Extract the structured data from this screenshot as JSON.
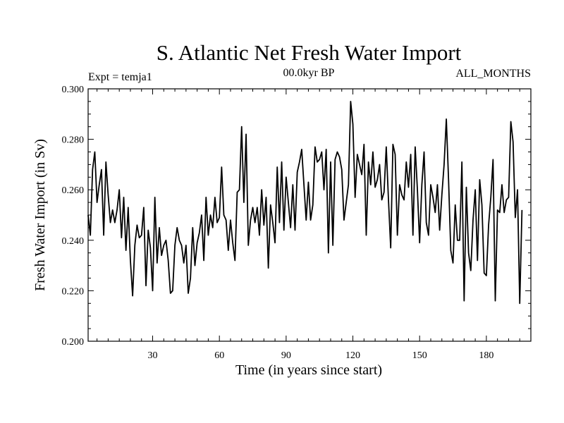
{
  "chart_data": {
    "type": "line",
    "title": "S. Atlantic Net Fresh Water Import",
    "subtitle_left": "Expt = temja1",
    "subtitle_center": "00.0kyr BP",
    "subtitle_right": "ALL_MONTHS",
    "xlabel": "Time (in years since start)",
    "ylabel": "Fresh Water Import (in Sv)",
    "xlim": [
      1,
      200
    ],
    "ylim": [
      0.2,
      0.3
    ],
    "xticks": [
      30,
      60,
      90,
      120,
      150,
      180
    ],
    "xtick_labels": [
      "30",
      "60",
      "90",
      "120",
      "150",
      "180"
    ],
    "yticks": [
      0.2,
      0.22,
      0.24,
      0.26,
      0.28,
      0.3
    ],
    "ytick_labels": [
      "0.200",
      "0.220",
      "0.240",
      "0.260",
      "0.280",
      "0.300"
    ],
    "line_color": "#000000",
    "series": [
      {
        "name": "fresh_water_import",
        "x_start": 1,
        "x_step": 1,
        "values": [
          0.25,
          0.242,
          0.268,
          0.275,
          0.255,
          0.262,
          0.268,
          0.242,
          0.271,
          0.258,
          0.247,
          0.252,
          0.247,
          0.252,
          0.26,
          0.241,
          0.257,
          0.236,
          0.253,
          0.232,
          0.218,
          0.238,
          0.246,
          0.241,
          0.242,
          0.253,
          0.222,
          0.244,
          0.237,
          0.22,
          0.257,
          0.231,
          0.245,
          0.234,
          0.238,
          0.24,
          0.232,
          0.219,
          0.22,
          0.238,
          0.245,
          0.24,
          0.238,
          0.231,
          0.238,
          0.219,
          0.225,
          0.245,
          0.23,
          0.239,
          0.243,
          0.25,
          0.232,
          0.257,
          0.242,
          0.25,
          0.245,
          0.257,
          0.247,
          0.249,
          0.269,
          0.25,
          0.248,
          0.236,
          0.248,
          0.239,
          0.232,
          0.259,
          0.26,
          0.285,
          0.255,
          0.282,
          0.238,
          0.248,
          0.253,
          0.247,
          0.253,
          0.242,
          0.26,
          0.246,
          0.257,
          0.229,
          0.254,
          0.247,
          0.239,
          0.269,
          0.247,
          0.271,
          0.244,
          0.265,
          0.255,
          0.245,
          0.262,
          0.244,
          0.267,
          0.271,
          0.276,
          0.262,
          0.248,
          0.263,
          0.248,
          0.254,
          0.277,
          0.271,
          0.272,
          0.275,
          0.26,
          0.276,
          0.235,
          0.271,
          0.238,
          0.272,
          0.275,
          0.273,
          0.268,
          0.248,
          0.255,
          0.262,
          0.295,
          0.286,
          0.257,
          0.274,
          0.27,
          0.266,
          0.278,
          0.242,
          0.271,
          0.262,
          0.275,
          0.261,
          0.264,
          0.27,
          0.256,
          0.259,
          0.277,
          0.256,
          0.237,
          0.278,
          0.274,
          0.242,
          0.262,
          0.258,
          0.256,
          0.271,
          0.261,
          0.274,
          0.242,
          0.277,
          0.26,
          0.239,
          0.262,
          0.275,
          0.247,
          0.242,
          0.262,
          0.257,
          0.251,
          0.262,
          0.244,
          0.258,
          0.27,
          0.288,
          0.264,
          0.236,
          0.231,
          0.254,
          0.24,
          0.24,
          0.271,
          0.216,
          0.261,
          0.235,
          0.228,
          0.248,
          0.26,
          0.232,
          0.264,
          0.254,
          0.227,
          0.226,
          0.246,
          0.257,
          0.272,
          0.216,
          0.252,
          0.251,
          0.262,
          0.251,
          0.256,
          0.257,
          0.287,
          0.279,
          0.249,
          0.26,
          0.215,
          0.252
        ]
      }
    ]
  }
}
